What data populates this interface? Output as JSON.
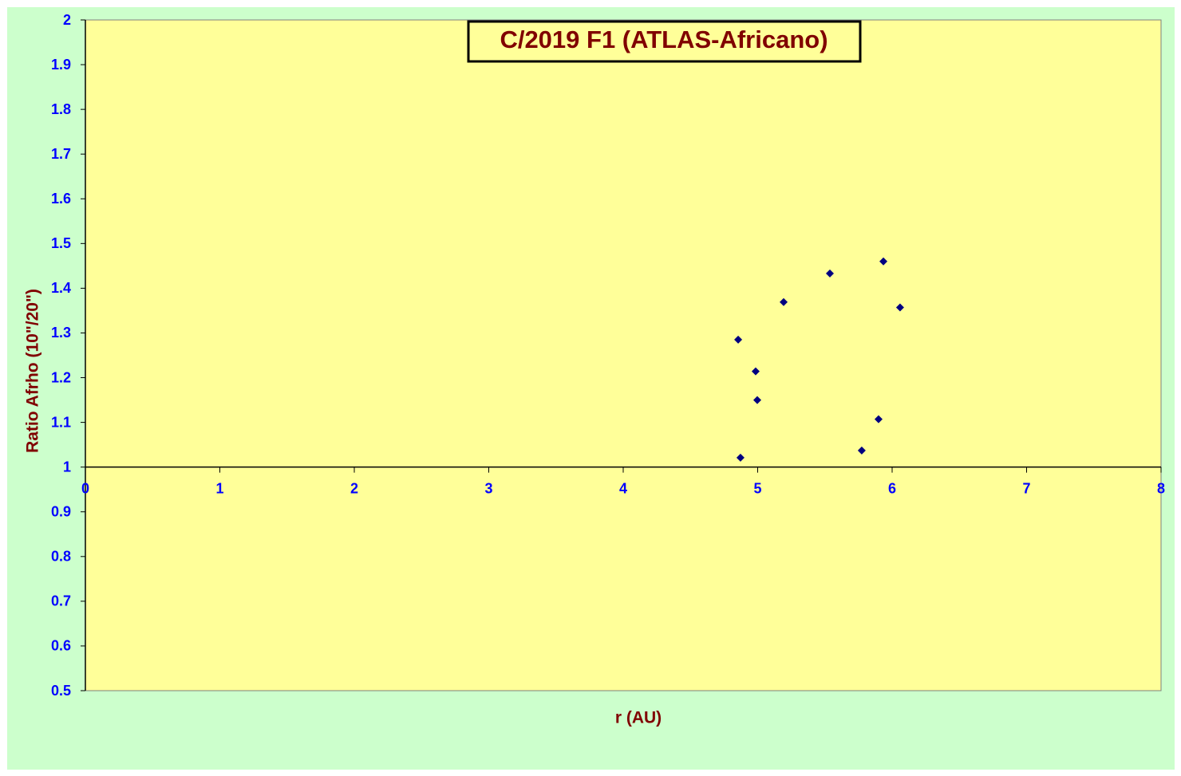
{
  "chart_data": {
    "type": "scatter",
    "title": "C/2019 F1 (ATLAS-Africano)",
    "x_label": "r (AU)",
    "y_label": "Ratio Afrho (10\"/20\")",
    "x": [
      4.855,
      4.985,
      4.997,
      4.872,
      5.193,
      5.537,
      5.935,
      6.059,
      5.899,
      5.774
    ],
    "values": [
      1.285,
      1.214,
      1.15,
      1.021,
      1.369,
      1.433,
      1.46,
      1.357,
      1.107,
      1.037
    ],
    "color": "#000080",
    "xlim": [
      0,
      8
    ],
    "xticks": [
      0,
      1,
      2,
      3,
      4,
      5,
      6,
      7,
      8
    ],
    "ylim": [
      0.5,
      2
    ],
    "yticks": [
      0.5,
      0.6,
      0.7,
      0.8,
      0.9,
      1,
      1.1,
      1.2,
      1.3,
      1.4,
      1.5,
      1.6,
      1.7,
      1.8,
      1.9,
      2
    ],
    "x_axis_crosses_at": 1
  }
}
